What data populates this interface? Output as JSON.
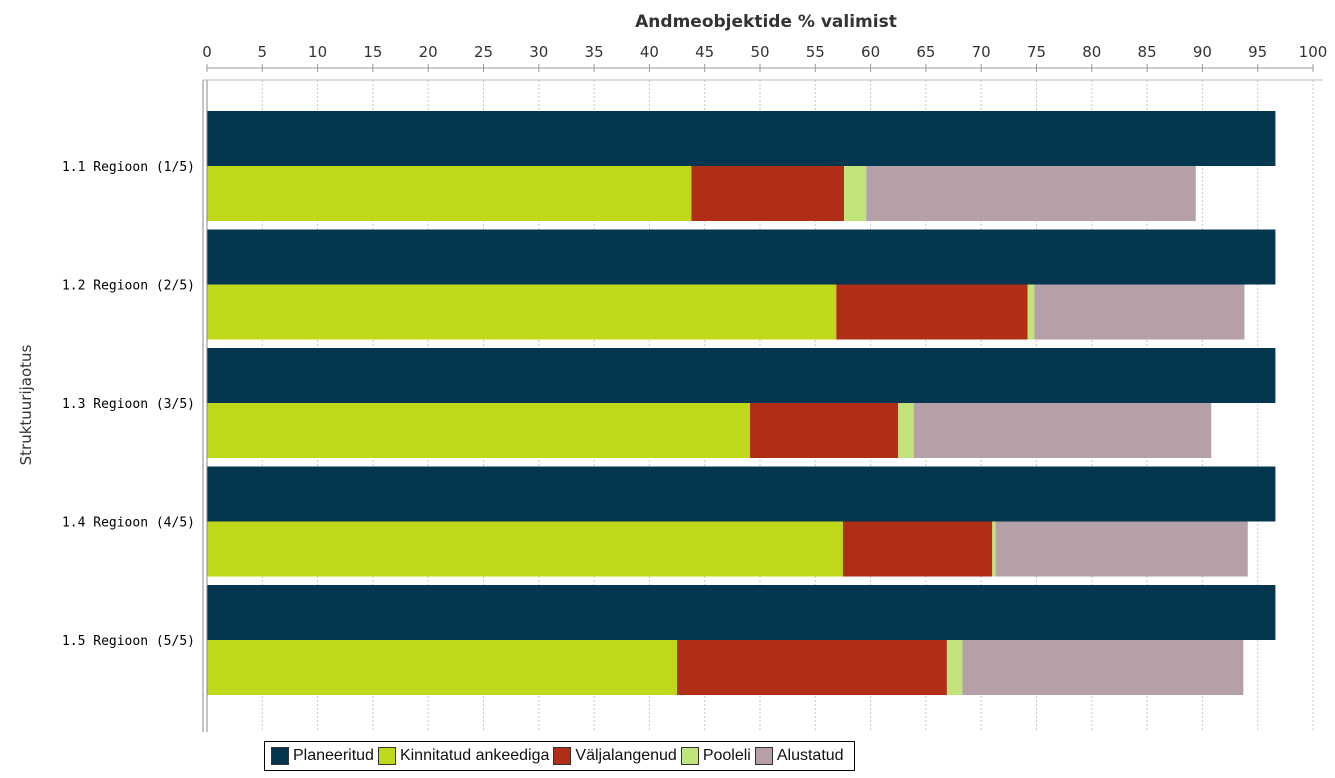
{
  "chart_data": {
    "type": "bar",
    "orientation": "horizontal",
    "title": "Andmeobjektide % valimist",
    "ylabel": "Struktuurijaotus",
    "xlim": [
      0,
      100
    ],
    "xticks": [
      "0",
      "5",
      "10",
      "15",
      "20",
      "25",
      "30",
      "35",
      "40",
      "45",
      "50",
      "55",
      "60",
      "65",
      "70",
      "75",
      "80",
      "85",
      "90",
      "95",
      "100"
    ],
    "grid": true,
    "legend_position": "bottom",
    "categories": [
      "1.1 Regioon (1/5)",
      "1.2 Regioon (2/5)",
      "1.3 Regioon (3/5)",
      "1.4 Regioon (4/5)",
      "1.5 Regioon (5/5)"
    ],
    "series": [
      {
        "name": "Planeeritud",
        "color": "#04364f",
        "stack": "planned",
        "values": [
          96.6,
          96.6,
          96.6,
          96.6,
          96.6
        ]
      },
      {
        "name": "Kinnitatud ankeediga",
        "color": "#bfd81a",
        "stack": "actual",
        "values": [
          43.8,
          56.9,
          49.1,
          57.5,
          42.5
        ]
      },
      {
        "name": "Väljalangenud",
        "color": "#b02e16",
        "stack": "actual",
        "values": [
          13.8,
          17.3,
          13.4,
          13.5,
          24.4
        ]
      },
      {
        "name": "Pooleli",
        "color": "#c1e37b",
        "stack": "actual",
        "values": [
          2.0,
          0.6,
          1.4,
          0.3,
          1.4
        ]
      },
      {
        "name": "Alustatud",
        "color": "#b4a0a6",
        "stack": "actual",
        "values": [
          29.8,
          19.0,
          26.9,
          22.8,
          25.4
        ]
      }
    ]
  }
}
